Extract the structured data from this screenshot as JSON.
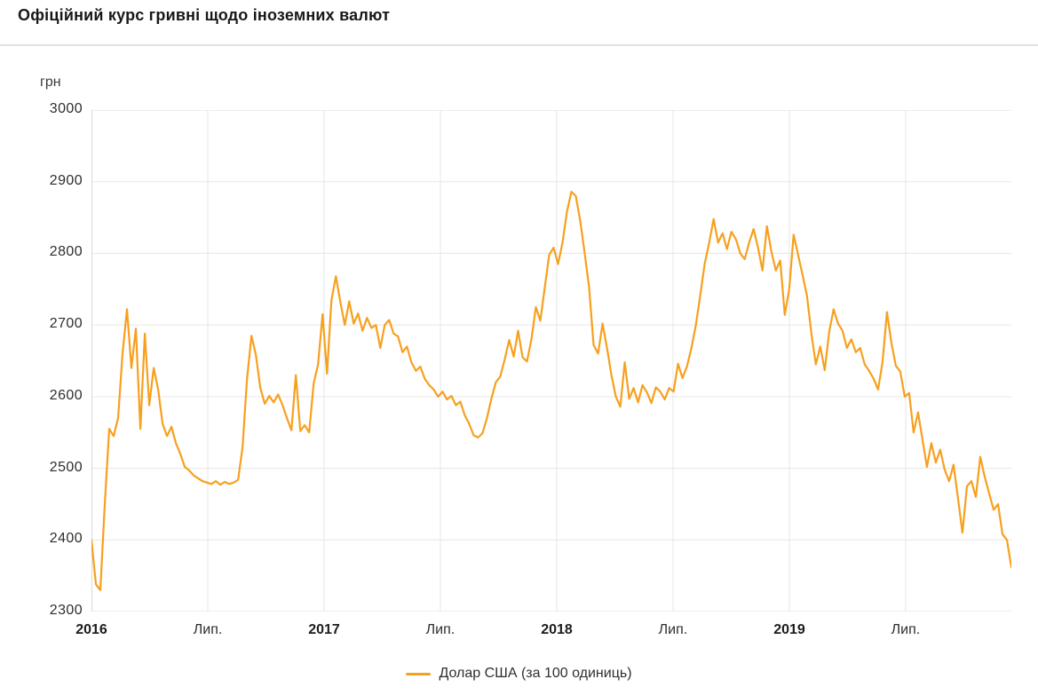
{
  "header": {
    "title": "Офіційний курс гривні щодо іноземних валют"
  },
  "chart_data": {
    "type": "line",
    "title": "Офіційний курс гривні щодо іноземних валют",
    "unit_label": "грн",
    "ylabel": "грн",
    "xlabel": "",
    "ylim": [
      2300,
      3000
    ],
    "grid": true,
    "legend_position": "bottom",
    "colors": {
      "series": "#F7A01E",
      "grid": "#e6e6e6",
      "axis": "#d9d9d9",
      "border": "#dcdcdc"
    },
    "y_ticks": [
      3000,
      2900,
      2800,
      2700,
      2600,
      2500,
      2400,
      2300
    ],
    "x_ticks": [
      {
        "label": "2016",
        "bold": true,
        "pos": 0.0
      },
      {
        "label": "Лип.",
        "bold": false,
        "pos": 0.1265
      },
      {
        "label": "2017",
        "bold": true,
        "pos": 0.2529
      },
      {
        "label": "Лип.",
        "bold": false,
        "pos": 0.3793
      },
      {
        "label": "2018",
        "bold": true,
        "pos": 0.5058
      },
      {
        "label": "Лип.",
        "bold": false,
        "pos": 0.6322
      },
      {
        "label": "2019",
        "bold": true,
        "pos": 0.7587
      },
      {
        "label": "Лип.",
        "bold": false,
        "pos": 0.8851
      }
    ],
    "x_start_label": "2016",
    "x_end_label": "Лип. 2019 +",
    "sampling": "weekly, Jan 2016 – Dec 2019",
    "series": [
      {
        "name": "Долар США (за 100 одиниць)",
        "color": "#F7A01E",
        "values": [
          2400,
          2338,
          2330,
          2450,
          2555,
          2545,
          2570,
          2660,
          2722,
          2640,
          2695,
          2555,
          2688,
          2588,
          2640,
          2610,
          2562,
          2545,
          2558,
          2535,
          2520,
          2502,
          2497,
          2490,
          2486,
          2482,
          2480,
          2478,
          2482,
          2477,
          2481,
          2478,
          2480,
          2484,
          2530,
          2625,
          2685,
          2658,
          2612,
          2590,
          2601,
          2592,
          2603,
          2588,
          2570,
          2553,
          2630,
          2552,
          2560,
          2550,
          2618,
          2645,
          2715,
          2632,
          2735,
          2768,
          2732,
          2700,
          2733,
          2702,
          2716,
          2692,
          2710,
          2696,
          2700,
          2668,
          2700,
          2707,
          2688,
          2684,
          2662,
          2670,
          2648,
          2636,
          2642,
          2625,
          2616,
          2610,
          2600,
          2607,
          2596,
          2601,
          2588,
          2593,
          2574,
          2562,
          2546,
          2543,
          2549,
          2570,
          2597,
          2620,
          2628,
          2652,
          2679,
          2656,
          2692,
          2655,
          2649,
          2680,
          2725,
          2706,
          2752,
          2798,
          2808,
          2785,
          2815,
          2858,
          2886,
          2880,
          2845,
          2800,
          2752,
          2672,
          2660,
          2702,
          2668,
          2630,
          2600,
          2586,
          2648,
          2597,
          2612,
          2592,
          2616,
          2606,
          2591,
          2613,
          2607,
          2596,
          2612,
          2607,
          2646,
          2626,
          2642,
          2668,
          2700,
          2742,
          2786,
          2815,
          2848,
          2815,
          2828,
          2806,
          2830,
          2820,
          2800,
          2792,
          2815,
          2834,
          2808,
          2776,
          2838,
          2803,
          2776,
          2790,
          2714,
          2750,
          2826,
          2798,
          2770,
          2741,
          2688,
          2645,
          2670,
          2637,
          2690,
          2722,
          2702,
          2692,
          2668,
          2680,
          2662,
          2668,
          2645,
          2636,
          2625,
          2610,
          2648,
          2718,
          2675,
          2643,
          2635,
          2600,
          2605,
          2550,
          2578,
          2540,
          2502,
          2535,
          2508,
          2526,
          2498,
          2482,
          2505,
          2458,
          2410,
          2475,
          2482,
          2460,
          2516,
          2488,
          2465,
          2442,
          2450,
          2408,
          2400,
          2362
        ]
      }
    ]
  },
  "legend": {
    "usd_label": "Долар США (за 100 одиниць)"
  }
}
